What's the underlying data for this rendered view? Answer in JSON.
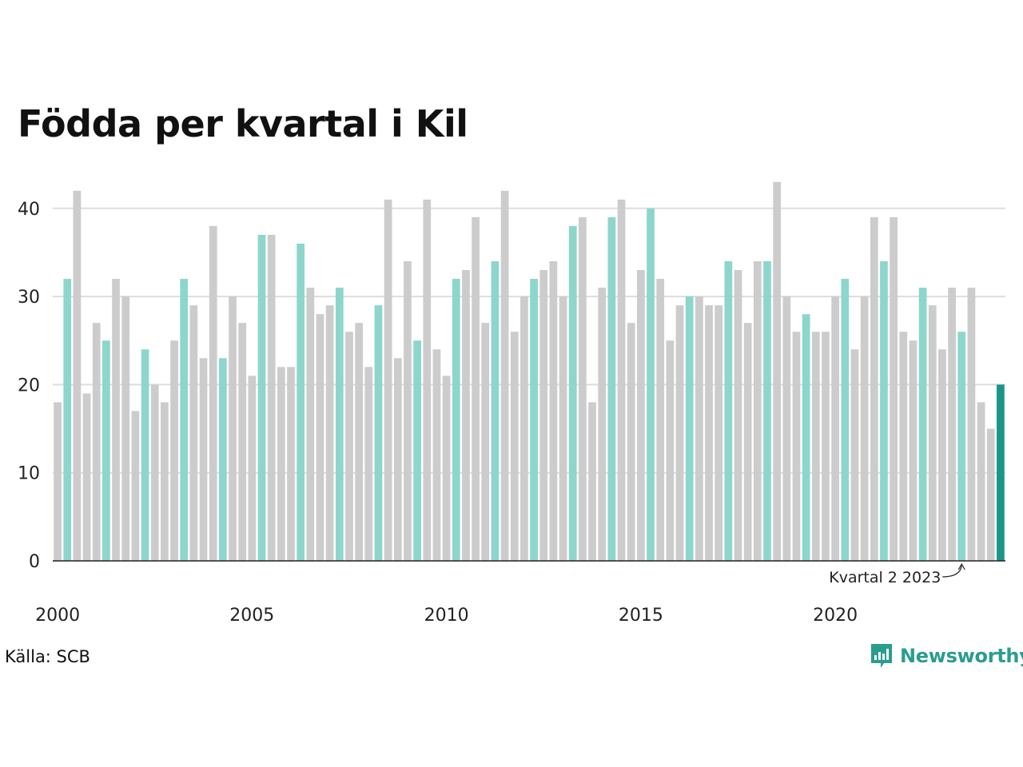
{
  "title": "Födda per kvartal i Kil",
  "source": "Källa: SCB",
  "brand": {
    "name": "Newsworthy",
    "icon": "newsworthy-logo-icon"
  },
  "colors": {
    "other_quarter": "#cccccc",
    "highlight_quarter": "#8dd6cc",
    "latest": "#1a9688",
    "grid": "#dddddd",
    "brand": "#2a9d8f"
  },
  "chart_data": {
    "type": "bar",
    "title": "Födda per kvartal i Kil",
    "xlabel": "",
    "ylabel": "",
    "ylim": [
      0,
      44
    ],
    "y_ticks": [
      0,
      10,
      20,
      30,
      40
    ],
    "x_tick_labels": [
      "2000",
      "2005",
      "2010",
      "2015",
      "2020"
    ],
    "grid": true,
    "legend": "none",
    "annotation": {
      "text": "Kvartal 2 2023",
      "target_index": 93
    },
    "highlighted_quarter": 2,
    "categories": [
      "2000 Q1",
      "2000 Q2",
      "2000 Q3",
      "2000 Q4",
      "2001 Q1",
      "2001 Q2",
      "2001 Q3",
      "2001 Q4",
      "2002 Q1",
      "2002 Q2",
      "2002 Q3",
      "2002 Q4",
      "2003 Q1",
      "2003 Q2",
      "2003 Q3",
      "2003 Q4",
      "2004 Q1",
      "2004 Q2",
      "2004 Q3",
      "2004 Q4",
      "2005 Q1",
      "2005 Q2",
      "2005 Q3",
      "2005 Q4",
      "2006 Q1",
      "2006 Q2",
      "2006 Q3",
      "2006 Q4",
      "2007 Q1",
      "2007 Q2",
      "2007 Q3",
      "2007 Q4",
      "2008 Q1",
      "2008 Q2",
      "2008 Q3",
      "2008 Q4",
      "2009 Q1",
      "2009 Q2",
      "2009 Q3",
      "2009 Q4",
      "2010 Q1",
      "2010 Q2",
      "2010 Q3",
      "2010 Q4",
      "2011 Q1",
      "2011 Q2",
      "2011 Q3",
      "2011 Q4",
      "2012 Q1",
      "2012 Q2",
      "2012 Q3",
      "2012 Q4",
      "2013 Q1",
      "2013 Q2",
      "2013 Q3",
      "2013 Q4",
      "2014 Q1",
      "2014 Q2",
      "2014 Q3",
      "2014 Q4",
      "2015 Q1",
      "2015 Q2",
      "2015 Q3",
      "2015 Q4",
      "2016 Q1",
      "2016 Q2",
      "2016 Q3",
      "2016 Q4",
      "2017 Q1",
      "2017 Q2",
      "2017 Q3",
      "2017 Q4",
      "2018 Q1",
      "2018 Q2",
      "2018 Q3",
      "2018 Q4",
      "2019 Q1",
      "2019 Q2",
      "2019 Q3",
      "2019 Q4",
      "2020 Q1",
      "2020 Q2",
      "2020 Q3",
      "2020 Q4",
      "2021 Q1",
      "2021 Q2",
      "2021 Q3",
      "2021 Q4",
      "2022 Q1",
      "2022 Q2",
      "2022 Q3",
      "2022 Q4",
      "2023 Q1",
      "2023 Q2",
      "2023 Q3",
      "2023 Q4",
      "2024 Q1",
      "2024 Q2"
    ],
    "values": [
      18,
      32,
      42,
      19,
      27,
      25,
      32,
      30,
      17,
      24,
      20,
      18,
      25,
      32,
      29,
      23,
      38,
      23,
      30,
      27,
      21,
      37,
      37,
      22,
      22,
      36,
      31,
      28,
      29,
      31,
      26,
      27,
      22,
      29,
      41,
      23,
      34,
      25,
      41,
      24,
      21,
      32,
      33,
      39,
      27,
      34,
      42,
      26,
      30,
      32,
      33,
      34,
      30,
      38,
      39,
      18,
      31,
      39,
      41,
      27,
      33,
      40,
      32,
      25,
      29,
      30,
      30,
      29,
      29,
      34,
      33,
      27,
      34,
      34,
      43,
      30,
      26,
      28,
      26,
      26,
      30,
      32,
      24,
      30,
      39,
      34,
      39,
      26,
      25,
      31,
      29,
      24,
      31,
      26,
      31,
      18,
      15,
      20
    ]
  }
}
